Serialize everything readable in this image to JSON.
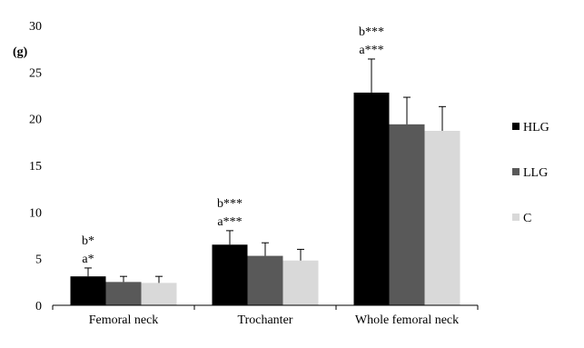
{
  "chart_data": {
    "type": "bar",
    "title": "",
    "xlabel": "",
    "ylabel": "(g)",
    "ylim": [
      0,
      30
    ],
    "yticks": [
      0,
      5,
      10,
      15,
      20,
      25,
      30
    ],
    "grid": false,
    "legend_position": "right",
    "categories": [
      "Femoral neck",
      "Trochanter",
      "Whole femoral neck"
    ],
    "series": [
      {
        "name": "HLG",
        "color": "#000000",
        "values": [
          3.1,
          6.5,
          22.8
        ],
        "errors": [
          0.9,
          1.5,
          3.6
        ]
      },
      {
        "name": "LLG",
        "color": "#595959",
        "values": [
          2.5,
          5.3,
          19.4
        ],
        "errors": [
          0.6,
          1.4,
          2.9
        ]
      },
      {
        "name": "C",
        "color": "#d9d9d9",
        "values": [
          2.4,
          4.8,
          18.7
        ],
        "errors": [
          0.7,
          1.2,
          2.6
        ]
      }
    ],
    "annotations": [
      {
        "category": 0,
        "lines": [
          "b*",
          "a*"
        ]
      },
      {
        "category": 1,
        "lines": [
          "b***",
          "a***"
        ]
      },
      {
        "category": 2,
        "lines": [
          "b***",
          "a***"
        ]
      }
    ]
  }
}
